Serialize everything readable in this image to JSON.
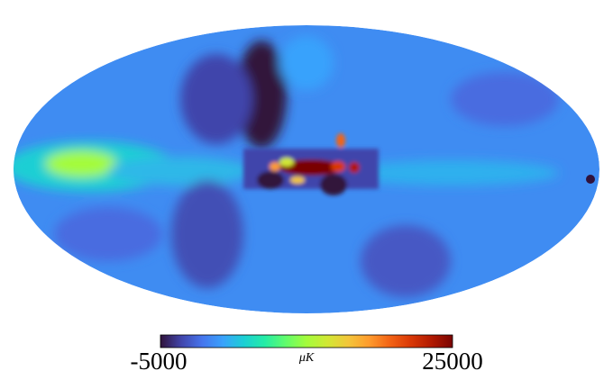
{
  "colorbar": {
    "min": -5000,
    "max": 25000,
    "unit": "μK",
    "colormap": [
      "#30123b",
      "#4145ab",
      "#4675ed",
      "#39a2fc",
      "#1bcfd4",
      "#24eca6",
      "#61fc6c",
      "#a4fc3b",
      "#d1e834",
      "#f3c63a",
      "#fe9b2d",
      "#f36315",
      "#d93806",
      "#b11901",
      "#7a0402"
    ]
  }
}
